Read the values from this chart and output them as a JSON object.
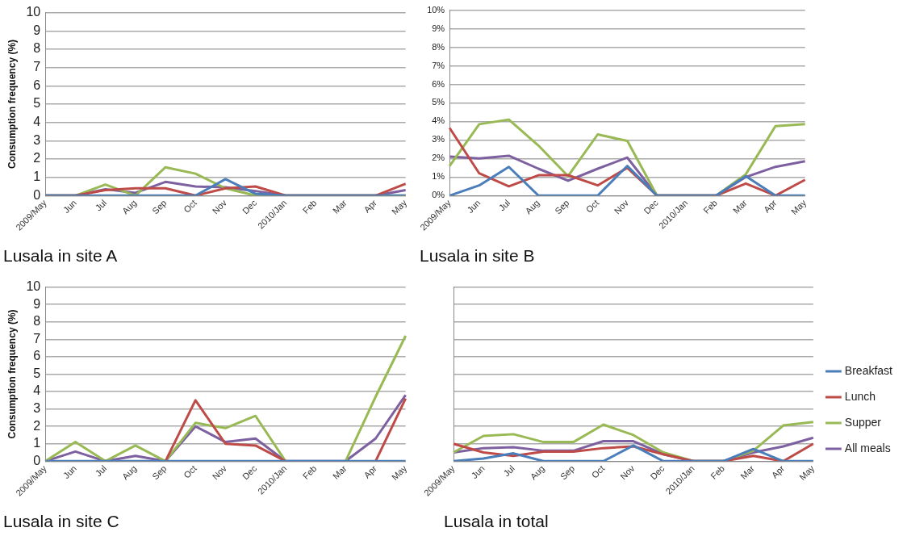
{
  "chart_data": [
    {
      "type": "line",
      "title": "Lusala in site A",
      "ylabel": "Consumption frequency (%)",
      "categories": [
        "2009/May",
        "Jun",
        "Jul",
        "Aug",
        "Sep",
        "Oct",
        "Nov",
        "Dec",
        "2010/Jan",
        "Feb",
        "Mar",
        "Apr",
        "May"
      ],
      "ylim": [
        0,
        10
      ],
      "yticks": [
        0,
        1,
        2,
        3,
        4,
        5,
        6,
        7,
        8,
        9,
        10
      ],
      "grid": "y",
      "legend": false,
      "marker": "none",
      "series": [
        {
          "color": "#4a7ebb",
          "values": [
            0,
            0,
            0,
            0,
            0,
            0,
            0.9,
            0.1,
            0,
            0,
            0,
            0,
            0
          ]
        },
        {
          "color": "#be4b48",
          "values": [
            0,
            0,
            0.3,
            0.4,
            0.4,
            0,
            0.4,
            0.5,
            0,
            0,
            0,
            0,
            0.65
          ]
        },
        {
          "color": "#98b954",
          "values": [
            0,
            0,
            0.6,
            0,
            1.55,
            1.2,
            0.4,
            0,
            0,
            0,
            0,
            0,
            0
          ]
        },
        {
          "color": "#7d60a0",
          "values": [
            0,
            0,
            0.35,
            0.15,
            0.75,
            0.5,
            0.45,
            0.25,
            0,
            0,
            0,
            0,
            0.3
          ]
        }
      ]
    },
    {
      "type": "line",
      "title": "Lusala in site B",
      "categories": [
        "2009/May",
        "Jun",
        "Jul",
        "Aug",
        "Sep",
        "Oct",
        "Nov",
        "Dec",
        "2010/Jan",
        "Feb",
        "Mar",
        "Apr",
        "May"
      ],
      "ylim": [
        0,
        10
      ],
      "yticks": [
        {
          "value": 0,
          "label": "0%"
        },
        {
          "value": 1,
          "label": "1%"
        },
        {
          "value": 2,
          "label": "2%"
        },
        {
          "value": 3,
          "label": "3%"
        },
        {
          "value": 4,
          "label": "4%"
        },
        {
          "value": 5,
          "label": "5%"
        },
        {
          "value": 6,
          "label": "6%"
        },
        {
          "value": 7,
          "label": "7%"
        },
        {
          "value": 8,
          "label": "8%"
        },
        {
          "value": 9,
          "label": "9%"
        },
        {
          "value": 10,
          "label": "10%"
        }
      ],
      "grid": "y",
      "legend": false,
      "marker": "none",
      "series": [
        {
          "color": "#4a7ebb",
          "values": [
            0,
            0.55,
            1.55,
            0,
            0,
            0,
            1.6,
            0,
            0,
            0,
            1.05,
            0,
            0
          ]
        },
        {
          "color": "#be4b48",
          "values": [
            3.65,
            1.2,
            0.5,
            1.1,
            1.1,
            0.55,
            1.5,
            0,
            0,
            0,
            0.65,
            0,
            0.85
          ]
        },
        {
          "color": "#98b954",
          "values": [
            1.6,
            3.85,
            4.1,
            2.7,
            1.05,
            3.3,
            2.95,
            0,
            0,
            0,
            1.15,
            3.75,
            3.85
          ]
        },
        {
          "color": "#7d60a0",
          "values": [
            2.1,
            2.0,
            2.15,
            1.45,
            0.8,
            1.45,
            2.05,
            0,
            0,
            0,
            1.0,
            1.55,
            1.85
          ]
        }
      ]
    },
    {
      "type": "line",
      "title": "Lusala in site C",
      "ylabel": "Consumption frequency (%)",
      "categories": [
        "2009/May",
        "Jun",
        "Jul",
        "Aug",
        "Sep",
        "Oct",
        "Nov",
        "Dec",
        "2010/Jan",
        "Feb",
        "Mar",
        "Apr",
        "May"
      ],
      "ylim": [
        0,
        10
      ],
      "yticks": [
        0,
        1,
        2,
        3,
        4,
        5,
        6,
        7,
        8,
        9,
        10
      ],
      "grid": "y",
      "legend": false,
      "marker": "none",
      "series": [
        {
          "color": "#4a7ebb",
          "values": [
            0,
            0,
            0,
            0,
            0,
            0,
            0,
            0,
            0,
            0,
            0,
            0,
            0
          ]
        },
        {
          "color": "#be4b48",
          "values": [
            null,
            null,
            null,
            null,
            0,
            3.5,
            1.0,
            0.9,
            0,
            null,
            null,
            0,
            3.6
          ]
        },
        {
          "color": "#98b954",
          "values": [
            0,
            1.1,
            0,
            0.9,
            0,
            2.2,
            1.9,
            2.6,
            0,
            null,
            0,
            3.7,
            7.2
          ]
        },
        {
          "color": "#7d60a0",
          "values": [
            0,
            0.55,
            0,
            0.3,
            0,
            2.0,
            1.1,
            1.3,
            0,
            0,
            0,
            1.3,
            3.8
          ]
        }
      ]
    },
    {
      "type": "line",
      "title": "Lusala in total",
      "categories": [
        "2009/May",
        "Jun",
        "Jul",
        "Aug",
        "Sep",
        "Oct",
        "Nov",
        "Dec",
        "2010/Jan",
        "Feb",
        "Mar",
        "Apr",
        "May"
      ],
      "ylim": [
        0,
        10
      ],
      "yticks": [
        0,
        1,
        2,
        3,
        4,
        5,
        6,
        7,
        8,
        9,
        10
      ],
      "tick_labels": "x",
      "grid": "y",
      "legend": "right",
      "marker": "none",
      "series": [
        {
          "name": "Breakfast",
          "color": "#4a7ebb",
          "values": [
            0,
            0.15,
            0.45,
            0,
            0,
            0,
            0.9,
            0,
            0,
            0,
            0.7,
            0,
            0
          ]
        },
        {
          "name": "Lunch",
          "color": "#be4b48",
          "values": [
            1.0,
            0.5,
            0.3,
            0.55,
            0.55,
            0.75,
            0.85,
            0.4,
            0,
            0,
            0.3,
            0,
            1.0
          ]
        },
        {
          "name": "Supper",
          "color": "#98b954",
          "values": [
            0.5,
            1.45,
            1.55,
            1.1,
            1.1,
            2.1,
            1.5,
            0.5,
            0,
            0,
            0.6,
            2.05,
            2.25
          ]
        },
        {
          "name": "All meals",
          "color": "#7d60a0",
          "values": [
            0.5,
            0.75,
            0.8,
            0.6,
            0.6,
            1.15,
            1.15,
            0.4,
            0,
            0,
            0.5,
            0.85,
            1.35
          ]
        }
      ]
    }
  ]
}
